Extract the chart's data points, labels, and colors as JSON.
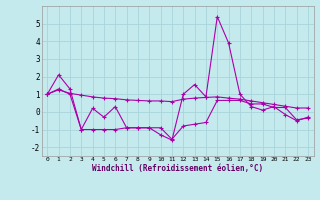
{
  "xlabel": "Windchill (Refroidissement éolien,°C)",
  "background_color": "#c5eaee",
  "grid_color": "#a8d4da",
  "line_color": "#aa00aa",
  "x_values": [
    0,
    1,
    2,
    3,
    4,
    5,
    6,
    7,
    8,
    9,
    10,
    11,
    12,
    13,
    14,
    15,
    16,
    17,
    18,
    19,
    20,
    21,
    22,
    23
  ],
  "series1": [
    1.0,
    2.1,
    1.3,
    -1.0,
    0.2,
    -0.3,
    0.3,
    -0.9,
    -0.9,
    -0.9,
    -1.3,
    -1.6,
    1.0,
    1.55,
    0.85,
    5.4,
    3.9,
    1.0,
    0.3,
    0.1,
    0.3,
    -0.15,
    -0.5,
    -0.3
  ],
  "series2": [
    1.0,
    1.3,
    1.0,
    -1.0,
    -1.0,
    -1.0,
    -1.0,
    -0.9,
    -0.9,
    -0.9,
    -0.9,
    -1.55,
    -0.8,
    -0.7,
    -0.6,
    0.65,
    0.65,
    0.65,
    0.45,
    0.45,
    0.25,
    0.25,
    -0.45,
    -0.35
  ],
  "series3": [
    1.0,
    1.25,
    1.05,
    0.95,
    0.85,
    0.78,
    0.75,
    0.68,
    0.65,
    0.62,
    0.62,
    0.58,
    0.72,
    0.78,
    0.82,
    0.85,
    0.78,
    0.72,
    0.62,
    0.52,
    0.42,
    0.32,
    0.22,
    0.22
  ],
  "ylim": [
    -2.5,
    6.0
  ],
  "xlim": [
    -0.5,
    23.5
  ],
  "yticks": [
    -2,
    -1,
    0,
    1,
    2,
    3,
    4,
    5
  ],
  "xticks": [
    0,
    1,
    2,
    3,
    4,
    5,
    6,
    7,
    8,
    9,
    10,
    11,
    12,
    13,
    14,
    15,
    16,
    17,
    18,
    19,
    20,
    21,
    22,
    23
  ]
}
